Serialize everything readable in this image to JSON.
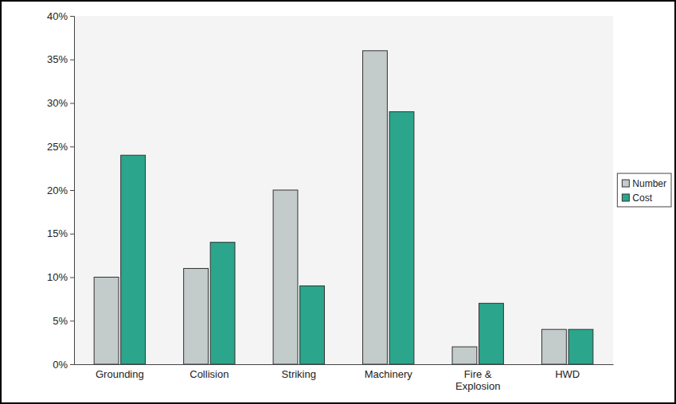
{
  "chart_data": {
    "type": "bar",
    "categories": [
      "Grounding",
      "Collision",
      "Striking",
      "Machinery",
      "Fire & Explosion",
      "HWD"
    ],
    "series": [
      {
        "name": "Number",
        "color": "#c3cbcb",
        "values": [
          10,
          11,
          20,
          36,
          2,
          4
        ]
      },
      {
        "name": "Cost",
        "color": "#2ba58b",
        "values": [
          24,
          14,
          9,
          29,
          7,
          4
        ]
      }
    ],
    "ylim": [
      0,
      40
    ],
    "yticks": [
      {
        "value": 0,
        "label": "0%"
      },
      {
        "value": 5,
        "label": "5%"
      },
      {
        "value": 10,
        "label": "10%"
      },
      {
        "value": 15,
        "label": "15%"
      },
      {
        "value": 20,
        "label": "20%"
      },
      {
        "value": 25,
        "label": "25%"
      },
      {
        "value": 30,
        "label": "30%"
      },
      {
        "value": 35,
        "label": "35%"
      },
      {
        "value": 40,
        "label": "40%"
      }
    ],
    "legend": "right",
    "grid": false
  }
}
